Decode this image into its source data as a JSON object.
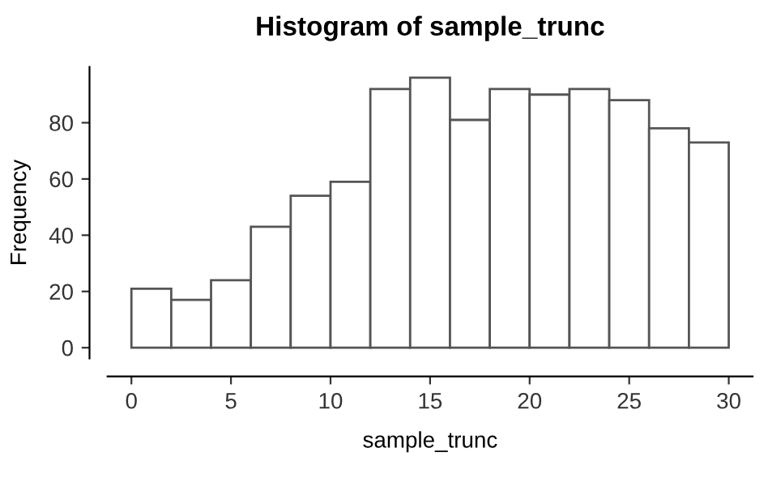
{
  "chart_data": {
    "type": "histogram",
    "title": "Histogram of sample_trunc",
    "xlabel": "sample_trunc",
    "ylabel": "Frequency",
    "bins": [
      0,
      2,
      4,
      6,
      8,
      10,
      12,
      14,
      16,
      18,
      20,
      22,
      24,
      26,
      28,
      30
    ],
    "values": [
      21,
      17,
      24,
      43,
      54,
      59,
      92,
      96,
      81,
      92,
      90,
      92,
      88,
      78,
      73
    ],
    "color": "#ffffff",
    "xlim": [
      -1.2,
      31.2
    ],
    "ylim": [
      -3.84,
      99.84
    ],
    "xticks": [
      0,
      5,
      10,
      15,
      20,
      25,
      30
    ],
    "yticks": [
      0,
      20,
      40,
      60,
      80
    ],
    "grid": false,
    "legend": false
  }
}
